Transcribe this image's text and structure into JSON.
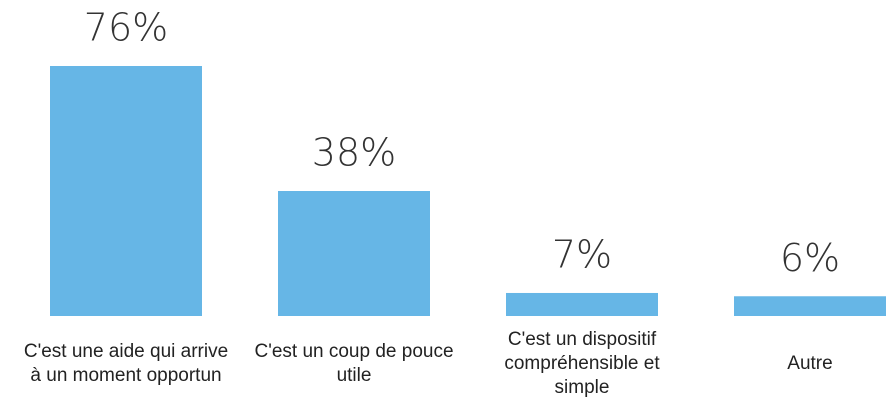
{
  "chart_data": {
    "type": "bar",
    "categories": [
      "C'est une aide qui arrive à un moment opportun",
      "C'est un coup de pouce utile",
      "C'est un dispositif compréhensible et simple",
      "Autre"
    ],
    "values": [
      76,
      38,
      7,
      6
    ],
    "value_labels": [
      "76%",
      "38%",
      "7%",
      "6%"
    ],
    "color": "#66b6e6"
  }
}
